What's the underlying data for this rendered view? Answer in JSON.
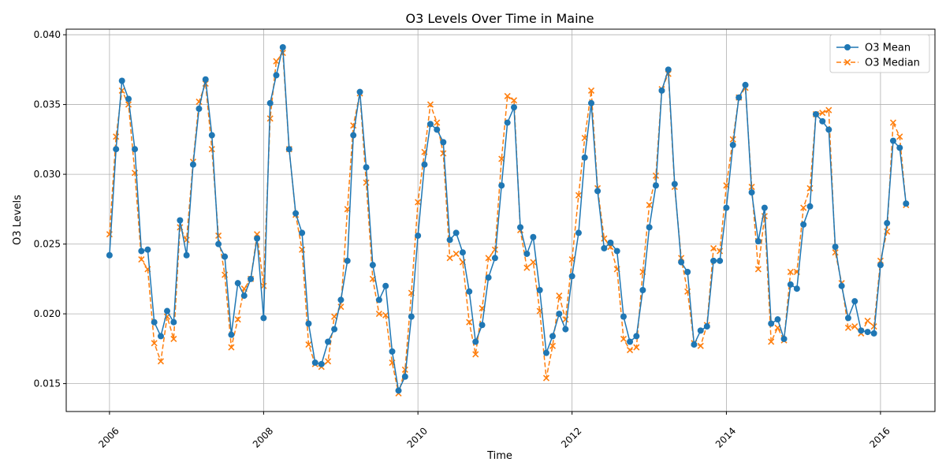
{
  "chart_data": {
    "type": "line",
    "title": "O3 Levels Over Time in Maine",
    "xlabel": "Time",
    "ylabel": "O3 Levels",
    "xlim": [
      "2005-06-10",
      "2016-09-15"
    ],
    "ylim": [
      0.013,
      0.0404
    ],
    "x_ticks": [
      "2006",
      "2008",
      "2010",
      "2012",
      "2014",
      "2016"
    ],
    "y_ticks": [
      "0.015",
      "0.020",
      "0.025",
      "0.030",
      "0.035",
      "0.040"
    ],
    "grid": true,
    "legend_position": "top-right",
    "x": [
      "2006-01",
      "2006-02",
      "2006-03",
      "2006-04",
      "2006-05",
      "2006-06",
      "2006-07",
      "2006-08",
      "2006-09",
      "2006-10",
      "2006-11",
      "2006-12",
      "2007-01",
      "2007-02",
      "2007-03",
      "2007-04",
      "2007-05",
      "2007-06",
      "2007-07",
      "2007-08",
      "2007-09",
      "2007-10",
      "2007-11",
      "2007-12",
      "2008-01",
      "2008-02",
      "2008-03",
      "2008-04",
      "2008-05",
      "2008-06",
      "2008-07",
      "2008-08",
      "2008-09",
      "2008-10",
      "2008-11",
      "2008-12",
      "2009-01",
      "2009-02",
      "2009-03",
      "2009-04",
      "2009-05",
      "2009-06",
      "2009-07",
      "2009-08",
      "2009-09",
      "2009-10",
      "2009-11",
      "2009-12",
      "2010-01",
      "2010-02",
      "2010-03",
      "2010-04",
      "2010-05",
      "2010-06",
      "2010-07",
      "2010-08",
      "2010-09",
      "2010-10",
      "2010-11",
      "2010-12",
      "2011-01",
      "2011-02",
      "2011-03",
      "2011-04",
      "2011-05",
      "2011-06",
      "2011-07",
      "2011-08",
      "2011-09",
      "2011-10",
      "2011-11",
      "2011-12",
      "2012-01",
      "2012-02",
      "2012-03",
      "2012-04",
      "2012-05",
      "2012-06",
      "2012-07",
      "2012-08",
      "2012-09",
      "2012-10",
      "2012-11",
      "2012-12",
      "2013-01",
      "2013-02",
      "2013-03",
      "2013-04",
      "2013-05",
      "2013-06",
      "2013-07",
      "2013-08",
      "2013-09",
      "2013-10",
      "2013-11",
      "2013-12",
      "2014-01",
      "2014-02",
      "2014-03",
      "2014-04",
      "2014-05",
      "2014-06",
      "2014-07",
      "2014-08",
      "2014-09",
      "2014-10",
      "2014-11",
      "2014-12",
      "2015-01",
      "2015-02",
      "2015-03",
      "2015-04",
      "2015-05",
      "2015-06",
      "2015-07",
      "2015-08",
      "2015-09",
      "2015-10",
      "2015-11",
      "2015-12",
      "2016-01",
      "2016-02",
      "2016-03",
      "2016-04",
      "2016-05"
    ],
    "series": [
      {
        "name": "O3 Mean",
        "color": "#1f77b4",
        "marker": "circle",
        "line": "solid",
        "values": [
          0.0242,
          0.0318,
          0.0367,
          0.0354,
          0.0318,
          0.0245,
          0.0246,
          0.0194,
          0.0184,
          0.0202,
          0.0194,
          0.0267,
          0.0242,
          0.0307,
          0.0347,
          0.0368,
          0.0328,
          0.025,
          0.0241,
          0.0185,
          0.0222,
          0.0213,
          0.0225,
          0.0254,
          0.0197,
          0.0351,
          0.0371,
          0.0391,
          0.0318,
          0.0272,
          0.0258,
          0.0193,
          0.0165,
          0.0164,
          0.018,
          0.0189,
          0.021,
          0.0238,
          0.0328,
          0.0359,
          0.0305,
          0.0235,
          0.021,
          0.022,
          0.0173,
          0.0145,
          0.0155,
          0.0198,
          0.0256,
          0.0307,
          0.0336,
          0.0332,
          0.0323,
          0.0253,
          0.0258,
          0.0244,
          0.0216,
          0.018,
          0.0192,
          0.0226,
          0.024,
          0.0292,
          0.0337,
          0.0348,
          0.0262,
          0.0243,
          0.0255,
          0.0217,
          0.0172,
          0.0184,
          0.02,
          0.0189,
          0.0227,
          0.0258,
          0.0312,
          0.0351,
          0.0288,
          0.0247,
          0.0251,
          0.0245,
          0.0198,
          0.018,
          0.0184,
          0.0217,
          0.0262,
          0.0292,
          0.036,
          0.0375,
          0.0293,
          0.0237,
          0.023,
          0.0178,
          0.0188,
          0.0191,
          0.0238,
          0.0238,
          0.0276,
          0.0321,
          0.0355,
          0.0364,
          0.0287,
          0.0252,
          0.0276,
          0.0193,
          0.0196,
          0.0182,
          0.0221,
          0.0218,
          0.0264,
          0.0277,
          0.0343,
          0.0338,
          0.0332,
          0.0248,
          0.022,
          0.0197,
          0.0209,
          0.0188,
          0.0187,
          0.0186,
          0.0235,
          0.0265,
          0.0324,
          0.0319,
          0.0279
        ]
      },
      {
        "name": "O3 Median",
        "color": "#ff7f0e",
        "marker": "x",
        "line": "dashed",
        "values": [
          0.0257,
          0.0327,
          0.036,
          0.035,
          0.0301,
          0.0239,
          0.0232,
          0.0179,
          0.0166,
          0.0198,
          0.0182,
          0.0262,
          0.0253,
          0.0309,
          0.0352,
          0.0365,
          0.0318,
          0.0256,
          0.0228,
          0.0176,
          0.0196,
          0.0218,
          0.0225,
          0.0257,
          0.022,
          0.034,
          0.0381,
          0.0387,
          0.0318,
          0.0271,
          0.0246,
          0.0178,
          0.0164,
          0.0162,
          0.0166,
          0.0198,
          0.0205,
          0.0275,
          0.0335,
          0.0358,
          0.0294,
          0.0225,
          0.02,
          0.0199,
          0.0165,
          0.0143,
          0.016,
          0.0215,
          0.028,
          0.0316,
          0.035,
          0.0337,
          0.0315,
          0.024,
          0.0243,
          0.0237,
          0.0194,
          0.0171,
          0.0204,
          0.024,
          0.0246,
          0.0311,
          0.0356,
          0.0353,
          0.026,
          0.0233,
          0.0237,
          0.0202,
          0.0154,
          0.0177,
          0.0213,
          0.0196,
          0.0239,
          0.0285,
          0.0326,
          0.036,
          0.029,
          0.0254,
          0.0248,
          0.0232,
          0.0182,
          0.0174,
          0.0176,
          0.023,
          0.0278,
          0.0299,
          0.0361,
          0.0372,
          0.0291,
          0.024,
          0.0216,
          0.0179,
          0.0177,
          0.0192,
          0.0247,
          0.0245,
          0.0292,
          0.0325,
          0.0355,
          0.0362,
          0.0291,
          0.0232,
          0.027,
          0.018,
          0.019,
          0.0181,
          0.023,
          0.023,
          0.0276,
          0.029,
          0.0343,
          0.0344,
          0.0346,
          0.0244,
          0.0222,
          0.019,
          0.0191,
          0.0186,
          0.0195,
          0.0191,
          0.0238,
          0.0259,
          0.0337,
          0.0327,
          0.0278
        ]
      }
    ]
  }
}
